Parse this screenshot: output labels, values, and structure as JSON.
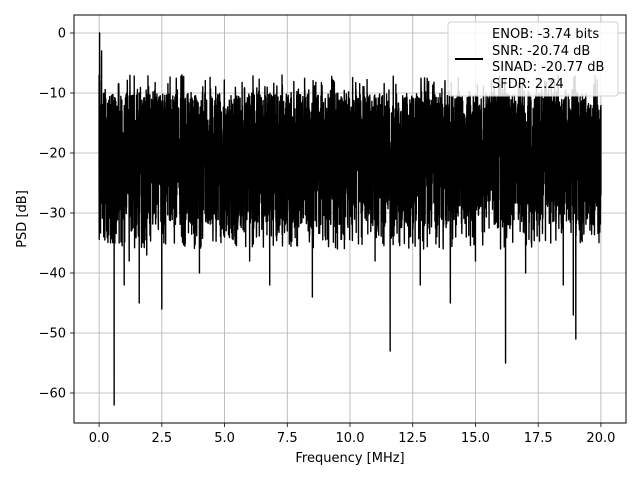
{
  "chart_data": {
    "type": "line",
    "xlabel": "Frequency [MHz]",
    "ylabel": "PSD [dB]",
    "xlim": [
      -1.0,
      21.0
    ],
    "ylim": [
      -65.0,
      3.0
    ],
    "xticks": [
      0.0,
      2.5,
      5.0,
      7.5,
      10.0,
      12.5,
      15.0,
      17.5,
      20.0
    ],
    "xtick_labels": [
      "0.0",
      "2.5",
      "5.0",
      "7.5",
      "10.0",
      "12.5",
      "15.0",
      "17.5",
      "20.0"
    ],
    "yticks": [
      0,
      -10,
      -20,
      -30,
      -40,
      -50,
      -60
    ],
    "ytick_labels": [
      "0",
      "−10",
      "−20",
      "−30",
      "−40",
      "−50",
      "−60"
    ],
    "grid": true,
    "line_color": "#000000",
    "legend_position": "upper right",
    "legend_entries": [
      "ENOB: -3.74 bits",
      "SNR: -20.74 dB",
      "SINAD: -20.77 dB",
      "SFDR: 2.24"
    ],
    "series": [
      {
        "x": [
          0.0,
          0.02,
          0.05,
          0.08,
          0.1,
          0.15,
          0.2,
          0.25,
          0.3,
          0.4,
          0.5,
          0.6,
          0.7,
          0.8,
          0.9,
          1.0,
          1.1,
          1.2,
          1.4,
          1.6,
          1.8,
          1.9,
          2.0,
          2.2,
          2.5,
          2.8,
          3.0,
          3.3,
          3.5,
          4.0,
          4.5,
          5.0,
          5.5,
          6.0,
          6.5,
          6.8,
          7.0,
          7.5,
          8.0,
          8.5,
          9.0,
          9.5,
          10.0,
          10.5,
          11.0,
          11.6,
          12.0,
          12.5,
          12.8,
          13.0,
          13.5,
          14.0,
          14.5,
          15.0,
          15.5,
          16.0,
          16.2,
          16.5,
          17.0,
          17.5,
          18.0,
          18.5,
          18.9,
          19.0,
          19.5,
          20.0
        ],
        "y": [
          -7.0,
          0.0,
          -15.0,
          -12.0,
          -3.0,
          -20.0,
          -28.0,
          -22.0,
          -33.0,
          -18.0,
          -30.0,
          -62.0,
          -20.0,
          -35.0,
          -25.0,
          -42.0,
          -22.0,
          -38.0,
          -28.0,
          -45.0,
          -25.0,
          -37.0,
          -20.0,
          -30.0,
          -46.0,
          -22.0,
          -35.0,
          -7.0,
          -30.0,
          -40.0,
          -20.0,
          -34.0,
          -25.0,
          -38.0,
          -22.0,
          -42.0,
          -18.0,
          -33.0,
          -27.0,
          -44.0,
          -20.0,
          -36.0,
          -30.0,
          -25.0,
          -38.0,
          -53.0,
          -22.0,
          -35.0,
          -42.0,
          -20.0,
          -30.0,
          -45.0,
          -25.0,
          -38.0,
          -28.0,
          -36.0,
          -55.0,
          -22.0,
          -40.0,
          -30.0,
          -35.0,
          -42.0,
          -47.0,
          -51.0,
          -30.0,
          -27.0
        ]
      }
    ]
  }
}
